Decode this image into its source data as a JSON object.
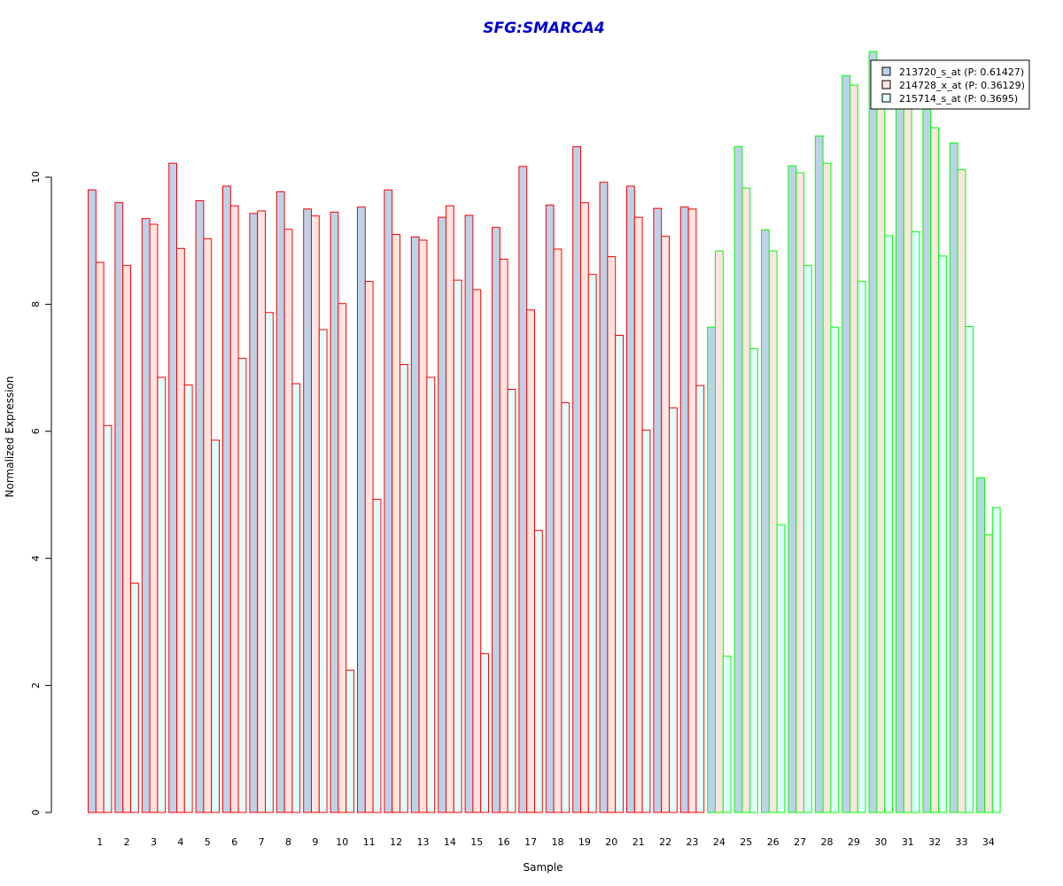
{
  "chart_data": {
    "type": "bar",
    "title": "SFG:SMARCA4",
    "xlabel": "Sample",
    "ylabel": "Normalized Expression",
    "ylim": [
      0,
      12
    ],
    "yticks": [
      0,
      2,
      4,
      6,
      8,
      10
    ],
    "categories": [
      "1",
      "2",
      "3",
      "4",
      "5",
      "6",
      "7",
      "8",
      "9",
      "10",
      "11",
      "12",
      "13",
      "14",
      "15",
      "16",
      "17",
      "18",
      "19",
      "20",
      "21",
      "22",
      "23",
      "24",
      "25",
      "26",
      "27",
      "28",
      "29",
      "30",
      "31",
      "32",
      "33",
      "34"
    ],
    "group_a_count": 23,
    "colors": {
      "group_a_border": "#ff0000",
      "group_b_border": "#00ff00",
      "series_fills": [
        "#bcd2e8",
        "#ffe4e1",
        "#e0ffff"
      ],
      "title": "#0000cc"
    },
    "legend_position": "top-right",
    "series": [
      {
        "name": "213720_s_at (P: 0.61427)",
        "values": [
          9.8,
          9.6,
          9.35,
          10.22,
          9.63,
          9.86,
          9.43,
          9.77,
          9.5,
          9.45,
          9.53,
          9.8,
          9.06,
          9.37,
          9.4,
          9.21,
          10.17,
          9.56,
          10.48,
          9.92,
          9.86,
          9.51,
          9.53,
          7.64,
          10.48,
          9.17,
          10.18,
          10.65,
          11.6,
          11.98,
          11.25,
          11.13,
          10.54,
          5.27
        ]
      },
      {
        "name": "214728_x_at (P: 0.36129)",
        "values": [
          8.66,
          8.61,
          9.26,
          8.88,
          9.03,
          9.55,
          9.47,
          9.18,
          9.39,
          8.01,
          8.36,
          9.1,
          9.01,
          9.55,
          8.23,
          8.71,
          7.91,
          8.87,
          9.6,
          8.75,
          9.37,
          9.07,
          9.5,
          8.84,
          9.83,
          8.84,
          10.07,
          10.22,
          11.45,
          11.2,
          11.1,
          10.78,
          10.12,
          4.37
        ]
      },
      {
        "name": "215714_s_at (P: 0.3695)",
        "values": [
          6.09,
          3.61,
          6.85,
          6.73,
          5.86,
          7.15,
          7.87,
          6.75,
          7.6,
          2.24,
          4.93,
          7.05,
          6.85,
          8.38,
          2.5,
          6.66,
          4.44,
          6.45,
          8.47,
          7.51,
          6.02,
          6.37,
          6.72,
          2.46,
          7.3,
          4.53,
          8.61,
          7.64,
          8.36,
          9.08,
          9.14,
          8.76,
          7.65,
          4.8
        ]
      }
    ]
  }
}
